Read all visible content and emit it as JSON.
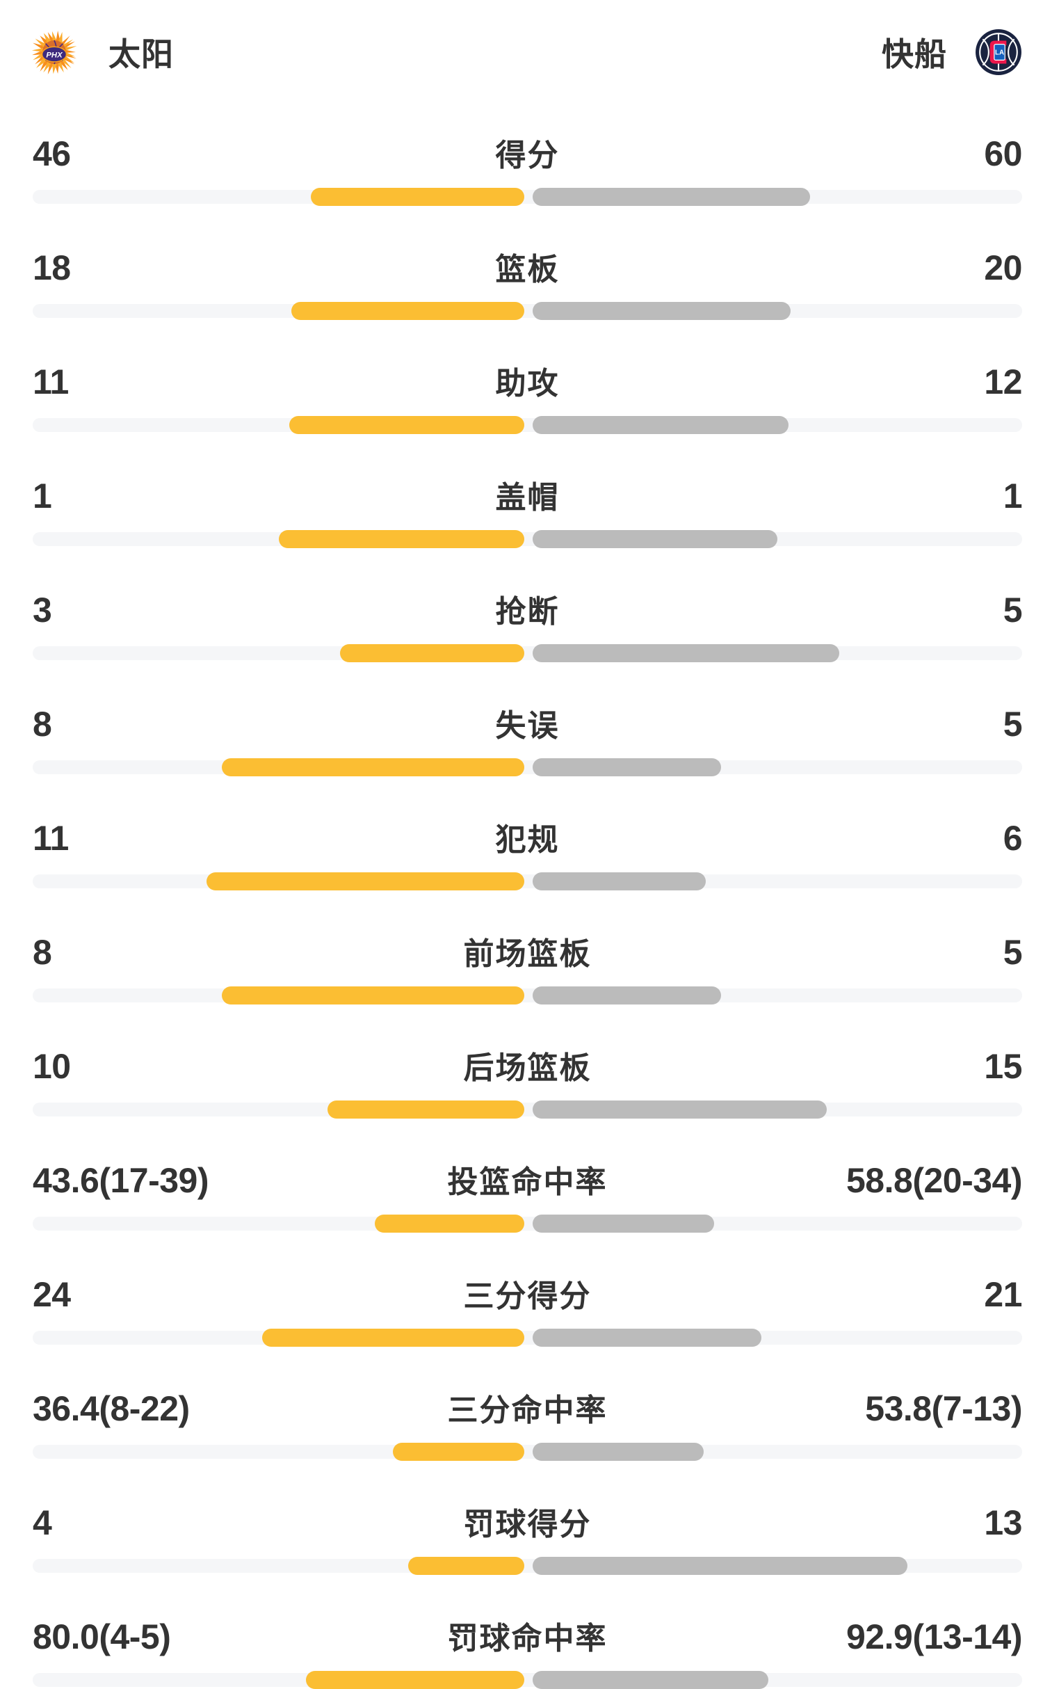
{
  "header": {
    "home_name": "太阳",
    "away_name": "快船",
    "home_logo": "phoenix-suns",
    "away_logo": "la-clippers",
    "home_logo_text": "PHX",
    "away_logo_text": "LA"
  },
  "colors": {
    "background": "#FFFFFF",
    "home_bar": "#FBBE33",
    "away_bar": "#BBBBBB",
    "bar_track": "#F5F6F8",
    "number_text": "#333333",
    "label_text": "#333333",
    "suns_purple": "#3D2B7D",
    "suns_orange": "#F78E1E",
    "suns_yellow": "#FBAC2D",
    "clippers_navy": "#1A2340",
    "clippers_red": "#ED174C",
    "clippers_blue": "#1560BD"
  },
  "chart_data": {
    "type": "bar",
    "subtype": "tornado-comparison",
    "title": "",
    "teams": [
      "太阳",
      "快船"
    ],
    "team_colors": {
      "太阳": "#FBBE33",
      "快船": "#BBBBBB"
    },
    "legend_position": "header",
    "grid": false,
    "bar_rule": "count rows: width = value/(left+right) of half track; percent rows: width = value/(value+100) of half track",
    "rows": [
      {
        "label": "得分",
        "left_display": "46",
        "right_display": "60",
        "left_value": 46,
        "right_value": 60,
        "kind": "count"
      },
      {
        "label": "篮板",
        "left_display": "18",
        "right_display": "20",
        "left_value": 18,
        "right_value": 20,
        "kind": "count"
      },
      {
        "label": "助攻",
        "left_display": "11",
        "right_display": "12",
        "left_value": 11,
        "right_value": 12,
        "kind": "count"
      },
      {
        "label": "盖帽",
        "left_display": "1",
        "right_display": "1",
        "left_value": 1,
        "right_value": 1,
        "kind": "count"
      },
      {
        "label": "抢断",
        "left_display": "3",
        "right_display": "5",
        "left_value": 3,
        "right_value": 5,
        "kind": "count"
      },
      {
        "label": "失误",
        "left_display": "8",
        "right_display": "5",
        "left_value": 8,
        "right_value": 5,
        "kind": "count"
      },
      {
        "label": "犯规",
        "left_display": "11",
        "right_display": "6",
        "left_value": 11,
        "right_value": 6,
        "kind": "count"
      },
      {
        "label": "前场篮板",
        "left_display": "8",
        "right_display": "5",
        "left_value": 8,
        "right_value": 5,
        "kind": "count"
      },
      {
        "label": "后场篮板",
        "left_display": "10",
        "right_display": "15",
        "left_value": 10,
        "right_value": 15,
        "kind": "count"
      },
      {
        "label": "投篮命中率",
        "left_display": "43.6(17-39)",
        "right_display": "58.8(20-34)",
        "left_value": 43.6,
        "right_value": 58.8,
        "kind": "pct"
      },
      {
        "label": "三分得分",
        "left_display": "24",
        "right_display": "21",
        "left_value": 24,
        "right_value": 21,
        "kind": "count"
      },
      {
        "label": "三分命中率",
        "left_display": "36.4(8-22)",
        "right_display": "53.8(7-13)",
        "left_value": 36.4,
        "right_value": 53.8,
        "kind": "pct"
      },
      {
        "label": "罚球得分",
        "left_display": "4",
        "right_display": "13",
        "left_value": 4,
        "right_value": 13,
        "kind": "count"
      },
      {
        "label": "罚球命中率",
        "left_display": "80.0(4-5)",
        "right_display": "92.9(13-14)",
        "left_value": 80.0,
        "right_value": 92.9,
        "kind": "pct"
      }
    ]
  }
}
